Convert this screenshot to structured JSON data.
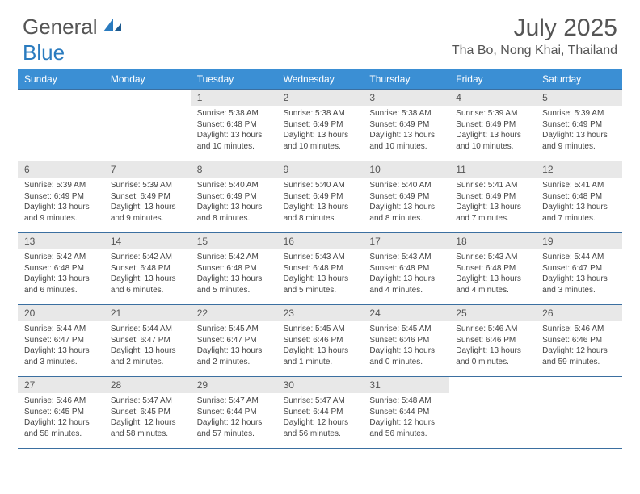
{
  "logo": {
    "text1": "General",
    "text2": "Blue"
  },
  "title": "July 2025",
  "location": "Tha Bo, Nong Khai, Thailand",
  "colors": {
    "header_bg": "#3b8fd4",
    "week_border": "#3b6fa0",
    "daynum_bg": "#e8e8e8",
    "text": "#555"
  },
  "day_names": [
    "Sunday",
    "Monday",
    "Tuesday",
    "Wednesday",
    "Thursday",
    "Friday",
    "Saturday"
  ],
  "weeks": [
    [
      null,
      null,
      {
        "n": "1",
        "sr": "5:38 AM",
        "ss": "6:48 PM",
        "dl": "13 hours and 10 minutes."
      },
      {
        "n": "2",
        "sr": "5:38 AM",
        "ss": "6:49 PM",
        "dl": "13 hours and 10 minutes."
      },
      {
        "n": "3",
        "sr": "5:38 AM",
        "ss": "6:49 PM",
        "dl": "13 hours and 10 minutes."
      },
      {
        "n": "4",
        "sr": "5:39 AM",
        "ss": "6:49 PM",
        "dl": "13 hours and 10 minutes."
      },
      {
        "n": "5",
        "sr": "5:39 AM",
        "ss": "6:49 PM",
        "dl": "13 hours and 9 minutes."
      }
    ],
    [
      {
        "n": "6",
        "sr": "5:39 AM",
        "ss": "6:49 PM",
        "dl": "13 hours and 9 minutes."
      },
      {
        "n": "7",
        "sr": "5:39 AM",
        "ss": "6:49 PM",
        "dl": "13 hours and 9 minutes."
      },
      {
        "n": "8",
        "sr": "5:40 AM",
        "ss": "6:49 PM",
        "dl": "13 hours and 8 minutes."
      },
      {
        "n": "9",
        "sr": "5:40 AM",
        "ss": "6:49 PM",
        "dl": "13 hours and 8 minutes."
      },
      {
        "n": "10",
        "sr": "5:40 AM",
        "ss": "6:49 PM",
        "dl": "13 hours and 8 minutes."
      },
      {
        "n": "11",
        "sr": "5:41 AM",
        "ss": "6:49 PM",
        "dl": "13 hours and 7 minutes."
      },
      {
        "n": "12",
        "sr": "5:41 AM",
        "ss": "6:48 PM",
        "dl": "13 hours and 7 minutes."
      }
    ],
    [
      {
        "n": "13",
        "sr": "5:42 AM",
        "ss": "6:48 PM",
        "dl": "13 hours and 6 minutes."
      },
      {
        "n": "14",
        "sr": "5:42 AM",
        "ss": "6:48 PM",
        "dl": "13 hours and 6 minutes."
      },
      {
        "n": "15",
        "sr": "5:42 AM",
        "ss": "6:48 PM",
        "dl": "13 hours and 5 minutes."
      },
      {
        "n": "16",
        "sr": "5:43 AM",
        "ss": "6:48 PM",
        "dl": "13 hours and 5 minutes."
      },
      {
        "n": "17",
        "sr": "5:43 AM",
        "ss": "6:48 PM",
        "dl": "13 hours and 4 minutes."
      },
      {
        "n": "18",
        "sr": "5:43 AM",
        "ss": "6:48 PM",
        "dl": "13 hours and 4 minutes."
      },
      {
        "n": "19",
        "sr": "5:44 AM",
        "ss": "6:47 PM",
        "dl": "13 hours and 3 minutes."
      }
    ],
    [
      {
        "n": "20",
        "sr": "5:44 AM",
        "ss": "6:47 PM",
        "dl": "13 hours and 3 minutes."
      },
      {
        "n": "21",
        "sr": "5:44 AM",
        "ss": "6:47 PM",
        "dl": "13 hours and 2 minutes."
      },
      {
        "n": "22",
        "sr": "5:45 AM",
        "ss": "6:47 PM",
        "dl": "13 hours and 2 minutes."
      },
      {
        "n": "23",
        "sr": "5:45 AM",
        "ss": "6:46 PM",
        "dl": "13 hours and 1 minute."
      },
      {
        "n": "24",
        "sr": "5:45 AM",
        "ss": "6:46 PM",
        "dl": "13 hours and 0 minutes."
      },
      {
        "n": "25",
        "sr": "5:46 AM",
        "ss": "6:46 PM",
        "dl": "13 hours and 0 minutes."
      },
      {
        "n": "26",
        "sr": "5:46 AM",
        "ss": "6:46 PM",
        "dl": "12 hours and 59 minutes."
      }
    ],
    [
      {
        "n": "27",
        "sr": "5:46 AM",
        "ss": "6:45 PM",
        "dl": "12 hours and 58 minutes."
      },
      {
        "n": "28",
        "sr": "5:47 AM",
        "ss": "6:45 PM",
        "dl": "12 hours and 58 minutes."
      },
      {
        "n": "29",
        "sr": "5:47 AM",
        "ss": "6:44 PM",
        "dl": "12 hours and 57 minutes."
      },
      {
        "n": "30",
        "sr": "5:47 AM",
        "ss": "6:44 PM",
        "dl": "12 hours and 56 minutes."
      },
      {
        "n": "31",
        "sr": "5:48 AM",
        "ss": "6:44 PM",
        "dl": "12 hours and 56 minutes."
      },
      null,
      null
    ]
  ],
  "labels": {
    "sunrise": "Sunrise:",
    "sunset": "Sunset:",
    "daylight": "Daylight:"
  }
}
